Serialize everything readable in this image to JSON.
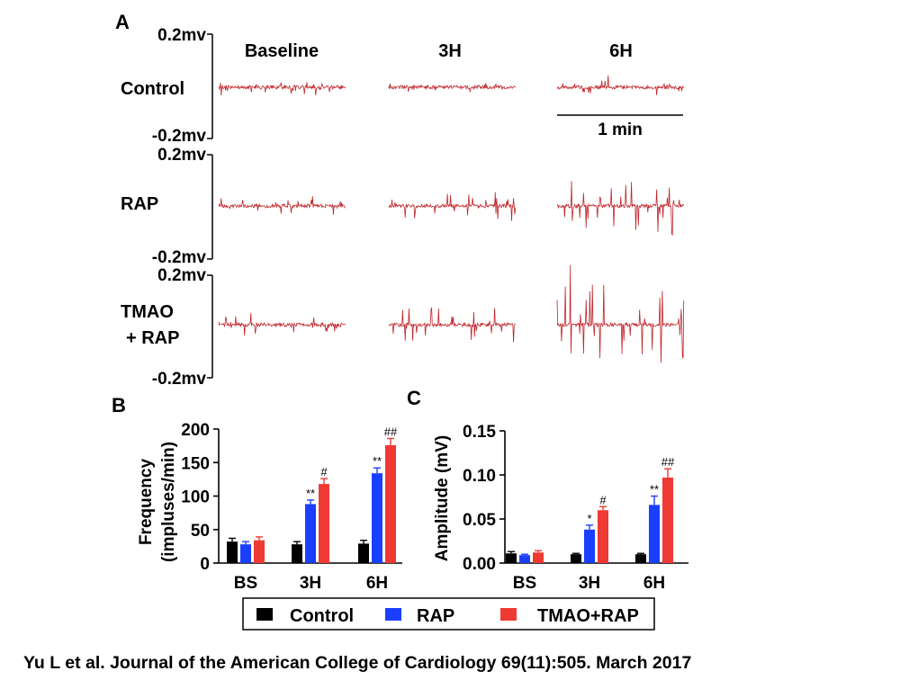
{
  "panel_a": {
    "label": "A",
    "scale_top": "0.2mv",
    "scale_bottom": "-0.2mv",
    "columns": [
      "Baseline",
      "3H",
      "6H"
    ],
    "rows": [
      {
        "label_lines": [
          "Control"
        ],
        "trace_amplitude_mv": [
          0.02,
          0.02,
          0.03
        ]
      },
      {
        "label_lines": [
          "RAP"
        ],
        "trace_amplitude_mv": [
          0.03,
          0.05,
          0.1
        ]
      },
      {
        "label_lines": [
          "TMAO",
          "+ RAP"
        ],
        "trace_amplitude_mv": [
          0.03,
          0.07,
          0.15
        ]
      }
    ],
    "scalebar_label": "1 min",
    "trace_color": "#c0242a"
  },
  "chart_data": [
    {
      "type": "bar",
      "panel": "B",
      "title": "",
      "xlabel": "",
      "ylabel_lines": [
        "Frequency",
        "(impluses/min)"
      ],
      "categories": [
        "BS",
        "3H",
        "6H"
      ],
      "ylim": [
        0,
        200
      ],
      "yticks": [
        0,
        50,
        100,
        150,
        200
      ],
      "series": [
        {
          "name": "Control",
          "color": "#000000",
          "values": [
            32,
            28,
            29
          ],
          "errors": [
            5,
            4,
            5
          ],
          "marks": [
            "",
            "",
            ""
          ]
        },
        {
          "name": "RAP",
          "color": "#1a3fff",
          "values": [
            28,
            88,
            134
          ],
          "errors": [
            4,
            6,
            8
          ],
          "marks": [
            "",
            "**",
            "**"
          ]
        },
        {
          "name": "TMAO+RAP",
          "color": "#ee3a33",
          "values": [
            34,
            118,
            176
          ],
          "errors": [
            5,
            8,
            10
          ],
          "marks": [
            "",
            "#",
            "##"
          ]
        }
      ]
    },
    {
      "type": "bar",
      "panel": "C",
      "title": "",
      "xlabel": "",
      "ylabel_lines": [
        "Amplitude (mV)"
      ],
      "categories": [
        "BS",
        "3H",
        "6H"
      ],
      "ylim": [
        0,
        0.15
      ],
      "yticks": [
        "0.00",
        "0.05",
        "0.10",
        "0.15"
      ],
      "series": [
        {
          "name": "Control",
          "color": "#000000",
          "values": [
            0.011,
            0.01,
            0.01
          ],
          "errors": [
            0.002,
            0.001,
            0.001
          ],
          "marks": [
            "",
            "",
            ""
          ]
        },
        {
          "name": "RAP",
          "color": "#1a3fff",
          "values": [
            0.009,
            0.038,
            0.066
          ],
          "errors": [
            0.001,
            0.005,
            0.01
          ],
          "marks": [
            "",
            "*",
            "**"
          ]
        },
        {
          "name": "TMAO+RAP",
          "color": "#ee3a33",
          "values": [
            0.012,
            0.06,
            0.097
          ],
          "errors": [
            0.002,
            0.004,
            0.01
          ],
          "marks": [
            "",
            "#",
            "##"
          ]
        }
      ]
    }
  ],
  "legend": {
    "items": [
      {
        "label": "Control",
        "color": "#000000"
      },
      {
        "label": "RAP",
        "color": "#1a3fff"
      },
      {
        "label": "TMAO+RAP",
        "color": "#ee3a33"
      }
    ]
  },
  "citation": "Yu L et al. Journal of the American College of Cardiology 69(11):505. March 2017"
}
